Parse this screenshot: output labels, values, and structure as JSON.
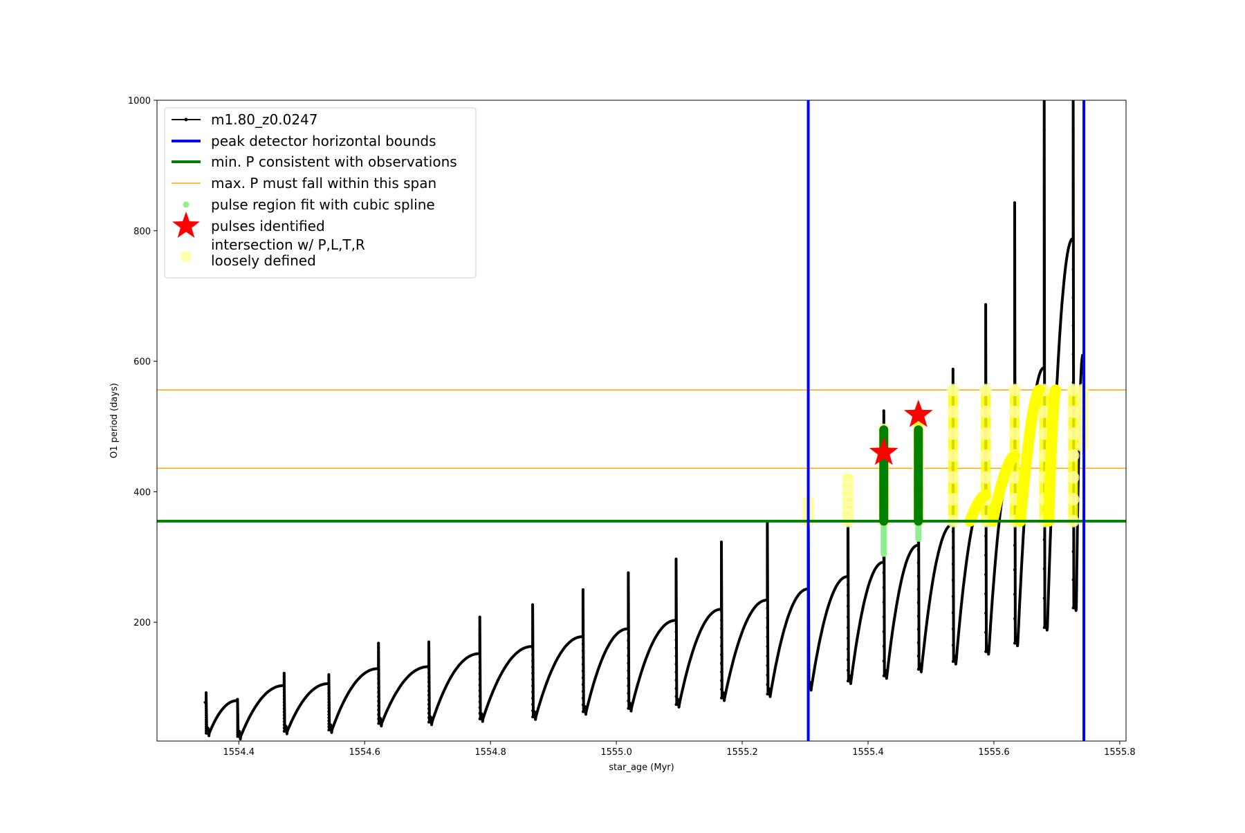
{
  "chart_data": {
    "type": "line",
    "title": "",
    "xlabel": "star_age (Myr)",
    "ylabel": "O1 period (days)",
    "xlim": [
      1554.27,
      1555.81
    ],
    "ylim": [
      18,
      1000
    ],
    "grid": false,
    "legend_position": "top-left",
    "xticks": [
      1554.4,
      1554.6,
      1554.8,
      1555.0,
      1555.2,
      1555.4,
      1555.6,
      1555.8
    ],
    "xtick_labels": [
      "1554.4",
      "1554.6",
      "1554.8",
      "1555.0",
      "1555.2",
      "1555.4",
      "1555.6",
      "1555.8"
    ],
    "yticks": [
      200,
      400,
      600,
      800,
      1000
    ],
    "ytick_labels": [
      "200",
      "400",
      "600",
      "800",
      "1000"
    ],
    "legend": [
      {
        "label": "m1.80_z0.0247",
        "marker": "line-dot",
        "color": "#000000"
      },
      {
        "label": "peak detector horizontal bounds",
        "marker": "line",
        "color": "#0000ff"
      },
      {
        "label": "min. P consistent with observations",
        "marker": "line",
        "color": "#008000"
      },
      {
        "label": "max. P must fall within this span",
        "marker": "thin-line",
        "color": "#ffa500"
      },
      {
        "label": "pulse region fit with cubic spline",
        "marker": "dot",
        "color": "#90ee90"
      },
      {
        "label": "pulses identified",
        "marker": "star",
        "color": "#ff0000"
      },
      {
        "label": "intersection w/ P,L,T,R\nloosely defined",
        "marker": "circle",
        "color": "#ffffaa"
      }
    ],
    "series": [
      {
        "name": "m1.80_z0.0247",
        "color": "#000000",
        "start": {
          "x": 1554.345,
          "y": 76
        },
        "pulses": [
          {
            "x": 1554.348,
            "pre": 78,
            "spike": 92,
            "min": 30
          },
          {
            "x": 1554.398,
            "pre": 80,
            "spike": 82,
            "min": 25
          },
          {
            "x": 1554.472,
            "pre": 103,
            "spike": 122,
            "min": 33
          },
          {
            "x": 1554.543,
            "pre": 106,
            "spike": 120,
            "min": 35
          },
          {
            "x": 1554.622,
            "pre": 129,
            "spike": 168,
            "min": 45
          },
          {
            "x": 1554.702,
            "pre": 132,
            "spike": 170,
            "min": 47
          },
          {
            "x": 1554.783,
            "pre": 152,
            "spike": 208,
            "min": 52
          },
          {
            "x": 1554.867,
            "pre": 163,
            "spike": 227,
            "min": 55
          },
          {
            "x": 1554.947,
            "pre": 178,
            "spike": 250,
            "min": 63
          },
          {
            "x": 1555.019,
            "pre": 190,
            "spike": 276,
            "min": 68
          },
          {
            "x": 1555.095,
            "pre": 203,
            "spike": 297,
            "min": 74
          },
          {
            "x": 1555.167,
            "pre": 220,
            "spike": 323,
            "min": 84
          },
          {
            "x": 1555.24,
            "pre": 234,
            "spike": 353,
            "min": 90
          },
          {
            "x": 1555.305,
            "pre": 251,
            "spike": 373,
            "min": 100
          },
          {
            "x": 1555.368,
            "pre": 270,
            "spike": 405,
            "min": 110
          },
          {
            "x": 1555.425,
            "pre": 292,
            "spike": 524,
            "min": 118
          },
          {
            "x": 1555.48,
            "pre": 318,
            "spike": 495,
            "min": 128
          },
          {
            "x": 1555.535,
            "pre": 350,
            "spike": 588,
            "min": 140
          },
          {
            "x": 1555.587,
            "pre": 395,
            "spike": 687,
            "min": 155
          },
          {
            "x": 1555.633,
            "pre": 455,
            "spike": 843,
            "min": 168
          },
          {
            "x": 1555.68,
            "pre": 590,
            "spike": 1000,
            "min": 192
          },
          {
            "x": 1555.726,
            "pre": 788,
            "spike": 1000,
            "min": 222
          }
        ],
        "end": {
          "x": 1555.742,
          "y": 610
        }
      }
    ],
    "peak_detector_bounds_x": [
      1555.305,
      1555.743
    ],
    "min_period_y": 355,
    "max_period_span_y": [
      436,
      556
    ],
    "cubic_spline_regions": [
      {
        "x": 1555.425,
        "y_min": 305,
        "y_max": 495
      },
      {
        "x": 1555.48,
        "y_min": 328,
        "y_max": 495
      }
    ],
    "green_fit_segments": [
      {
        "x": 1555.425,
        "y_min": 355,
        "y_max": 495
      },
      {
        "x": 1555.48,
        "y_min": 355,
        "y_max": 495
      }
    ],
    "pulses_identified": [
      {
        "x": 1555.425,
        "y": 460
      },
      {
        "x": 1555.48,
        "y": 518
      }
    ],
    "intersection_regions": [
      {
        "x": 1555.305,
        "y_min": 355,
        "y_max": 385
      },
      {
        "x": 1555.368,
        "y_min": 355,
        "y_max": 420
      },
      {
        "x": 1555.425,
        "y_min": 355,
        "y_max": 495
      },
      {
        "x": 1555.48,
        "y_min": 355,
        "y_max": 520
      },
      {
        "x": 1555.535,
        "y_min": 355,
        "y_max": 556
      },
      {
        "x": 1555.587,
        "y_min": 355,
        "y_max": 556
      },
      {
        "x": 1555.633,
        "y_min": 355,
        "y_max": 556
      },
      {
        "x": 1555.68,
        "y_min": 355,
        "y_max": 556
      },
      {
        "x": 1555.726,
        "y_min": 355,
        "y_max": 556
      },
      {
        "x": 1555.741,
        "y_min": 470,
        "y_max": 556
      }
    ],
    "intersection_arcs": [
      {
        "x_start": 1555.562,
        "x_end": 1555.587,
        "y_start": 355,
        "y_end": 395
      },
      {
        "x_start": 1555.598,
        "x_end": 1555.633,
        "y_start": 355,
        "y_end": 455
      },
      {
        "x_start": 1555.642,
        "x_end": 1555.672,
        "y_start": 355,
        "y_end": 556
      },
      {
        "x_start": 1555.687,
        "x_end": 1555.698,
        "y_start": 355,
        "y_end": 556
      }
    ]
  }
}
